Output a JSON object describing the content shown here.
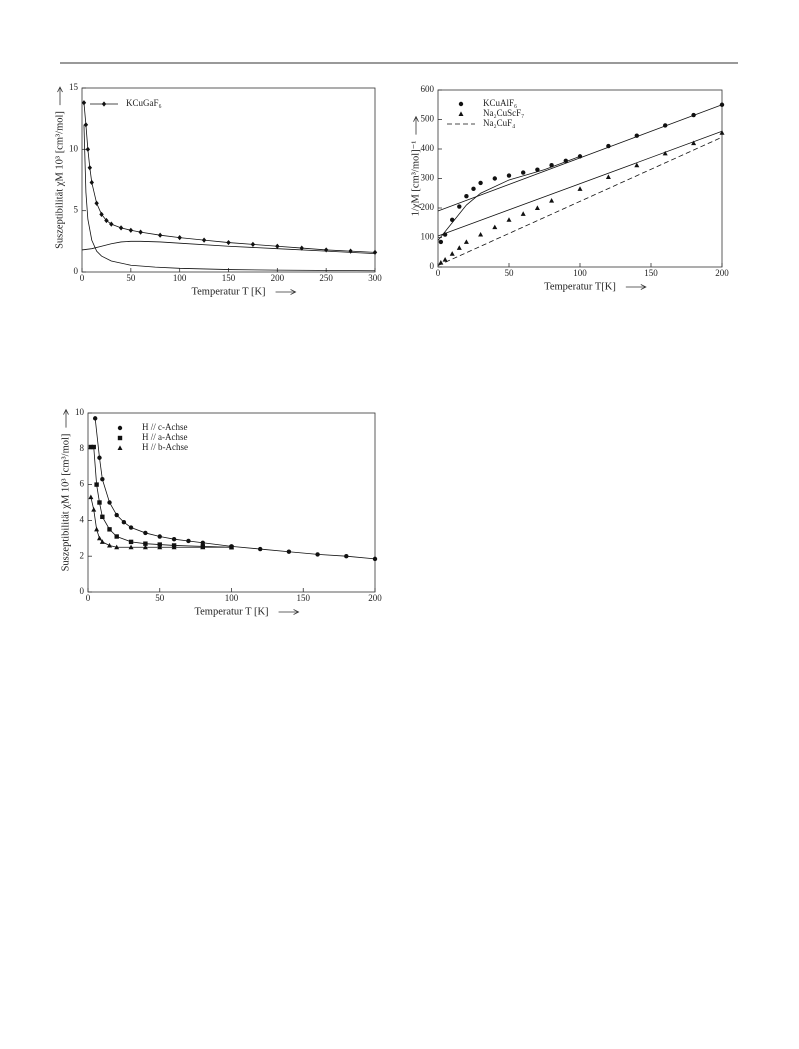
{
  "chart_data": [
    {
      "type": "line",
      "color": "#111",
      "x_label": "Temperatur T [K]",
      "y_label": "Suszeptibilität χM 10³ [cm³/mol]",
      "xlim": [
        0,
        300
      ],
      "xticks": [
        0,
        50,
        100,
        150,
        200,
        250,
        300
      ],
      "ylim": [
        0,
        15
      ],
      "yticks": [
        0,
        5,
        10,
        15
      ],
      "grid": false,
      "series": [
        {
          "name": "KCuGaF₆",
          "style": "line-markers",
          "marker": "diamond",
          "x": [
            2,
            4,
            6,
            8,
            10,
            15,
            20,
            25,
            30,
            40,
            50,
            60,
            80,
            100,
            125,
            150,
            175,
            200,
            225,
            250,
            275,
            300
          ],
          "values": [
            13.8,
            12,
            10,
            8.5,
            7.3,
            5.6,
            4.7,
            4.2,
            3.9,
            3.6,
            3.4,
            3.25,
            3.0,
            2.8,
            2.6,
            2.4,
            2.25,
            2.1,
            1.95,
            1.8,
            1.7,
            1.6
          ]
        },
        {
          "style": "line",
          "x": [
            2,
            4,
            6,
            10,
            15,
            20,
            30,
            50,
            75,
            100,
            150,
            200,
            300
          ],
          "values": [
            12,
            6.5,
            4.3,
            2.6,
            1.7,
            1.3,
            0.9,
            0.55,
            0.4,
            0.3,
            0.2,
            0.15,
            0.1
          ]
        },
        {
          "style": "line",
          "x": [
            0,
            10,
            20,
            30,
            40,
            50,
            60,
            80,
            100,
            150,
            200,
            250,
            300
          ],
          "values": [
            1.8,
            1.9,
            2.1,
            2.3,
            2.45,
            2.5,
            2.5,
            2.45,
            2.35,
            2.1,
            1.9,
            1.7,
            1.5
          ]
        }
      ]
    },
    {
      "type": "line",
      "color": "#111",
      "x_label": "Temperatur T[K]",
      "y_label": "1/χM [cm³/mol]⁻¹",
      "xlim": [
        0,
        200
      ],
      "xticks": [
        0,
        50,
        100,
        150,
        200
      ],
      "ylim": [
        0,
        600
      ],
      "yticks": [
        0,
        100,
        200,
        300,
        400,
        500,
        600
      ],
      "grid": false,
      "series": [
        {
          "name": "KCuAlF₆",
          "style": "markers",
          "marker": "circle",
          "x": [
            2,
            5,
            10,
            15,
            20,
            25,
            30,
            40,
            50,
            60,
            70,
            80,
            90,
            100,
            120,
            140,
            160,
            180,
            200
          ],
          "values": [
            85,
            110,
            160,
            205,
            240,
            265,
            285,
            300,
            310,
            320,
            330,
            345,
            360,
            375,
            410,
            445,
            480,
            515,
            550
          ]
        },
        {
          "name": "Na₂CuScF₇",
          "style": "markers",
          "marker": "triangle",
          "x": [
            2,
            5,
            10,
            15,
            20,
            30,
            40,
            50,
            60,
            70,
            80,
            100,
            120,
            140,
            160,
            180,
            200
          ],
          "values": [
            15,
            25,
            45,
            65,
            85,
            110,
            135,
            160,
            180,
            200,
            225,
            265,
            305,
            345,
            385,
            420,
            455
          ]
        },
        {
          "name": "Na₂CuF₄",
          "style": "dashed",
          "x": [
            0,
            200
          ],
          "values": [
            5,
            440
          ]
        },
        {
          "style": "line",
          "x": [
            0,
            200
          ],
          "values": [
            190,
            550
          ]
        },
        {
          "style": "line",
          "x": [
            0,
            10,
            20,
            30,
            50,
            75,
            100
          ],
          "values": [
            90,
            150,
            210,
            250,
            295,
            330,
            375
          ]
        },
        {
          "style": "line",
          "x": [
            0,
            200
          ],
          "values": [
            105,
            460
          ]
        }
      ]
    },
    {
      "type": "line",
      "color": "#111",
      "x_label": "Temperatur T [K]",
      "y_label": "Suszeptibilität χM 10³ [cm³/mol]",
      "xlim": [
        0,
        200
      ],
      "xticks": [
        0,
        50,
        100,
        150,
        200
      ],
      "ylim": [
        0,
        10
      ],
      "yticks": [
        0,
        2,
        4,
        6,
        8,
        10
      ],
      "grid": false,
      "series": [
        {
          "name": "H // c-Achse",
          "style": "line-markers",
          "marker": "circle",
          "x": [
            5,
            8,
            10,
            15,
            20,
            25,
            30,
            40,
            50,
            60,
            70,
            80,
            100,
            120,
            140,
            160,
            180,
            200
          ],
          "values": [
            9.7,
            7.5,
            6.3,
            5.0,
            4.3,
            3.9,
            3.6,
            3.3,
            3.1,
            2.95,
            2.85,
            2.75,
            2.55,
            2.4,
            2.25,
            2.1,
            2.0,
            1.85
          ]
        },
        {
          "name": "H // a-Achse",
          "style": "line-markers",
          "marker": "square",
          "x": [
            2,
            4,
            6,
            8,
            10,
            15,
            20,
            30,
            40,
            50,
            60,
            80,
            100
          ],
          "values": [
            8.1,
            8.1,
            6.0,
            5.0,
            4.2,
            3.5,
            3.1,
            2.8,
            2.7,
            2.65,
            2.6,
            2.55,
            2.5
          ]
        },
        {
          "name": "H // b-Achse",
          "style": "line-markers",
          "marker": "triangle",
          "x": [
            2,
            4,
            6,
            8,
            10,
            15,
            20,
            30,
            40,
            50,
            60,
            80,
            100
          ],
          "values": [
            5.3,
            4.6,
            3.5,
            3.0,
            2.8,
            2.6,
            2.5,
            2.5,
            2.5,
            2.5,
            2.5,
            2.5,
            2.5
          ]
        }
      ]
    }
  ]
}
